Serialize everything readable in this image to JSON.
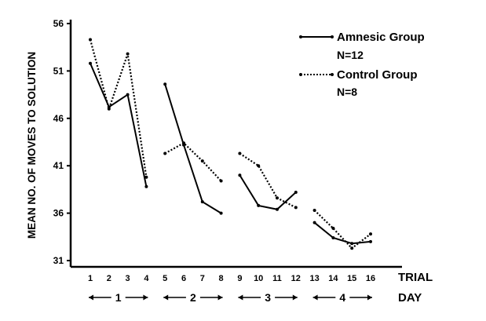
{
  "chart_data": {
    "type": "line",
    "ylabel": "MEAN NO. OF MOVES TO SOLUTION",
    "xlabel": "TRIAL",
    "day_label": "DAY",
    "ylim": [
      30.5,
      56
    ],
    "yticks": [
      31,
      36,
      41,
      46,
      51,
      56
    ],
    "xticks": [
      1,
      2,
      3,
      4,
      5,
      6,
      7,
      8,
      9,
      10,
      11,
      12,
      13,
      14,
      15,
      16
    ],
    "days": [
      {
        "label": "1",
        "trials": [
          1,
          4
        ]
      },
      {
        "label": "2",
        "trials": [
          5,
          8
        ]
      },
      {
        "label": "3",
        "trials": [
          9,
          12
        ]
      },
      {
        "label": "4",
        "trials": [
          13,
          16
        ]
      }
    ],
    "grid": false,
    "legend_position": "top-right",
    "series": [
      {
        "name": "Amnesic Group",
        "n_label": "N=12",
        "style": "solid",
        "color": "#000000",
        "segments": [
          {
            "x": [
              1,
              2,
              3,
              4
            ],
            "y": [
              51.8,
              47.2,
              48.5,
              38.8
            ]
          },
          {
            "x": [
              5,
              6,
              7,
              8
            ],
            "y": [
              49.6,
              43.2,
              37.2,
              36.0
            ]
          },
          {
            "x": [
              9,
              10,
              11,
              12
            ],
            "y": [
              40.0,
              36.8,
              36.4,
              38.2
            ]
          },
          {
            "x": [
              13,
              14,
              15,
              16
            ],
            "y": [
              35.0,
              33.4,
              32.8,
              33.0
            ]
          }
        ]
      },
      {
        "name": "Control Group",
        "n_label": "N=8",
        "style": "dotted",
        "color": "#000000",
        "segments": [
          {
            "x": [
              1,
              2,
              3,
              4
            ],
            "y": [
              54.3,
              47.0,
              52.8,
              39.8
            ]
          },
          {
            "x": [
              5,
              6,
              7,
              8
            ],
            "y": [
              42.3,
              43.4,
              41.5,
              39.4
            ]
          },
          {
            "x": [
              9,
              10,
              11,
              12
            ],
            "y": [
              42.3,
              41.0,
              37.6,
              36.6
            ]
          },
          {
            "x": [
              13,
              14,
              15,
              16
            ],
            "y": [
              36.3,
              34.4,
              32.3,
              33.8
            ]
          }
        ]
      }
    ]
  }
}
